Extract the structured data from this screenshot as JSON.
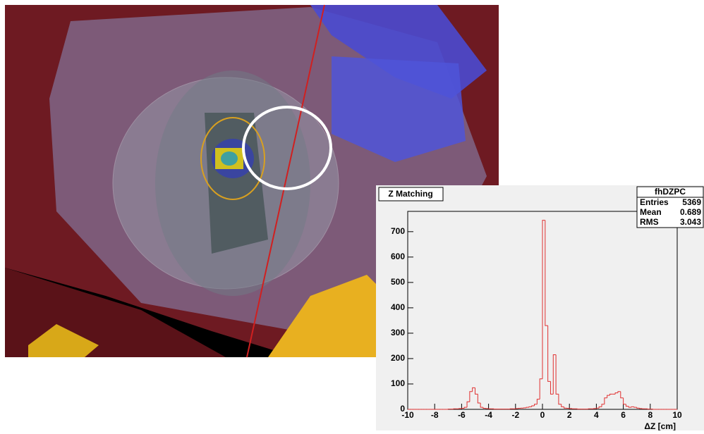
{
  "chart_data": {
    "type": "histogram",
    "title": "Z Matching",
    "xlabel": "ΔZ [cm]",
    "stats": {
      "title": "fhDZPC",
      "rows": [
        {
          "label": "Entries",
          "value": 5369
        },
        {
          "label": "Mean",
          "value": 0.689
        },
        {
          "label": "RMS",
          "value": 3.043
        }
      ]
    },
    "color": "#e03030",
    "bins": [
      -10,
      -9.8,
      -9.6,
      -9.4,
      -9.2,
      -9,
      -8.8,
      -8.6,
      -8.4,
      -8.2,
      -8,
      -7.8,
      -7.6,
      -7.4,
      -7.2,
      -7,
      -6.8,
      -6.6,
      -6.4,
      -6.2,
      -6,
      -5.8,
      -5.6,
      -5.4,
      -5.2,
      -5,
      -4.8,
      -4.6,
      -4.4,
      -4.2,
      -4,
      -3.8,
      -3.6,
      -3.4,
      -3.2,
      -3,
      -2.8,
      -2.6,
      -2.4,
      -2.2,
      -2,
      -1.8,
      -1.6,
      -1.4,
      -1.2,
      -1,
      -0.8,
      -0.6,
      -0.4,
      -0.2,
      0,
      0.2,
      0.4,
      0.6,
      0.8,
      1,
      1.2,
      1.4,
      1.6,
      1.8,
      2,
      2.2,
      2.4,
      2.6,
      2.8,
      3,
      3.2,
      3.4,
      3.6,
      3.8,
      4,
      4.2,
      4.4,
      4.6,
      4.8,
      5,
      5.2,
      5.4,
      5.6,
      5.8,
      6,
      6.2,
      6.4,
      6.6,
      6.8,
      7,
      7.2,
      7.4,
      7.6,
      7.8,
      8,
      8.2,
      8.4,
      8.6,
      8.8,
      9,
      9.2,
      9.4,
      9.6,
      9.8,
      10
    ],
    "values": [
      0,
      0,
      0,
      0,
      0,
      0,
      0,
      0,
      0,
      0,
      0,
      0,
      0,
      0,
      0,
      1,
      1,
      2,
      2,
      3,
      4,
      8,
      30,
      70,
      85,
      60,
      25,
      8,
      4,
      3,
      2,
      2,
      1,
      1,
      1,
      1,
      1,
      1,
      2,
      2,
      3,
      4,
      5,
      6,
      8,
      10,
      14,
      20,
      40,
      120,
      745,
      330,
      110,
      60,
      215,
      60,
      20,
      10,
      5,
      4,
      3,
      2,
      2,
      1,
      1,
      1,
      1,
      2,
      2,
      3,
      5,
      10,
      20,
      45,
      55,
      60,
      60,
      65,
      70,
      45,
      20,
      12,
      8,
      10,
      8,
      5,
      3,
      2,
      2,
      1,
      1,
      0,
      0,
      0,
      0,
      0,
      0,
      0,
      0,
      0
    ],
    "xlim": [
      -10,
      10
    ],
    "xticks": [
      -10,
      -8,
      -6,
      -4,
      -2,
      0,
      2,
      4,
      6,
      8,
      10
    ],
    "ylim": [
      0,
      780
    ],
    "yticks": [
      0,
      100,
      200,
      300,
      400,
      500,
      600,
      700
    ]
  }
}
